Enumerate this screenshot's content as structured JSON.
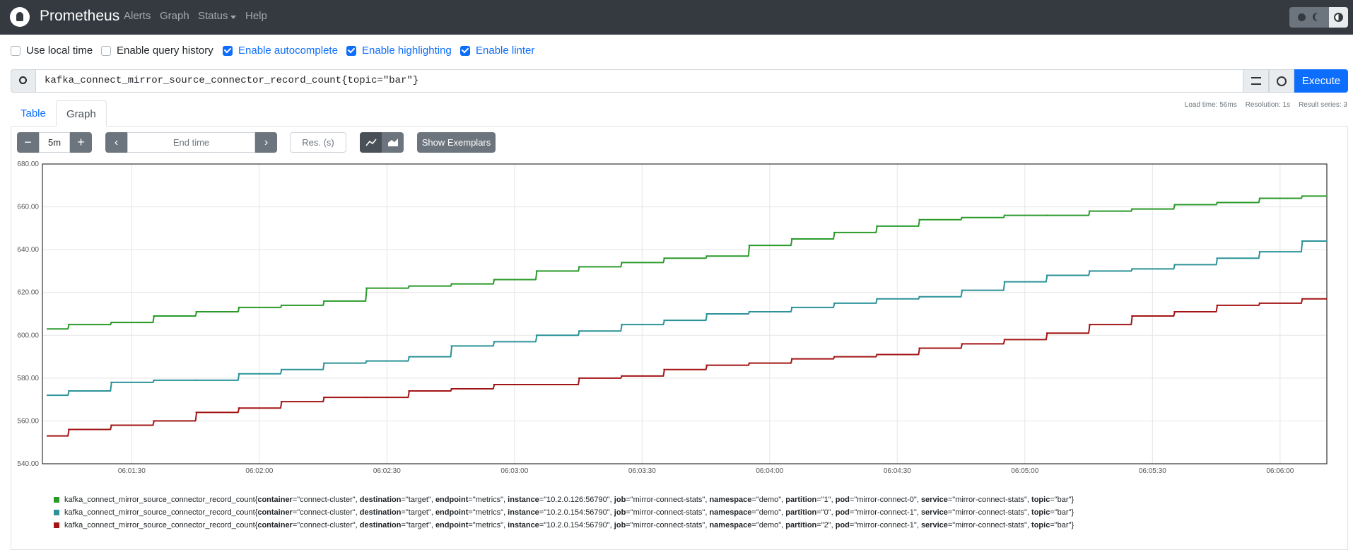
{
  "navbar": {
    "brand": "Prometheus",
    "links": [
      "Alerts",
      "Graph",
      "Status",
      "Help"
    ]
  },
  "options": [
    {
      "label": "Use local time",
      "checked": false
    },
    {
      "label": "Enable query history",
      "checked": false
    },
    {
      "label": "Enable autocomplete",
      "checked": true
    },
    {
      "label": "Enable highlighting",
      "checked": true
    },
    {
      "label": "Enable linter",
      "checked": true
    }
  ],
  "query": "kafka_connect_mirror_source_connector_record_count{topic=\"bar\"}",
  "execute": "Execute",
  "tabs": [
    "Table",
    "Graph"
  ],
  "active_tab": 1,
  "stats": [
    "Load time: 56ms",
    "Resolution: 1s",
    "Result series: 3"
  ],
  "controls": {
    "range": "5m",
    "end_time": "End time",
    "resolution": "Res. (s)",
    "exemplars": "Show Exemplars"
  },
  "chart_data": {
    "type": "line",
    "step": true,
    "grid": true,
    "x": [
      "06:01:10",
      "06:01:15",
      "06:01:25",
      "06:01:35",
      "06:01:45",
      "06:01:55",
      "06:02:05",
      "06:02:15",
      "06:02:25",
      "06:02:35",
      "06:02:45",
      "06:02:55",
      "06:03:05",
      "06:03:15",
      "06:03:25",
      "06:03:35",
      "06:03:45",
      "06:03:55",
      "06:04:05",
      "06:04:15",
      "06:04:25",
      "06:04:35",
      "06:04:45",
      "06:04:55",
      "06:05:05",
      "06:05:15",
      "06:05:25",
      "06:05:35",
      "06:05:45",
      "06:05:55",
      "06:06:05"
    ],
    "xlim": [
      "06:01:09",
      "06:06:11"
    ],
    "xticks": [
      "06:01:30",
      "06:02:00",
      "06:02:30",
      "06:03:00",
      "06:03:30",
      "06:04:00",
      "06:04:30",
      "06:05:00",
      "06:05:30",
      "06:06:00"
    ],
    "ylim": [
      540,
      680
    ],
    "yticks": [
      {
        "value": 540,
        "label": "540.00"
      },
      {
        "value": 560,
        "label": "560.00"
      },
      {
        "value": 580,
        "label": "580.00"
      },
      {
        "value": 600,
        "label": "600.00"
      },
      {
        "value": 620,
        "label": "620.00"
      },
      {
        "value": 640,
        "label": "640.00"
      },
      {
        "value": 660,
        "label": "660.00"
      },
      {
        "value": 680,
        "label": "680.00"
      }
    ],
    "series": [
      {
        "name": "kafka_connect_mirror_source_connector_record_count{container=\"connect-cluster\", destination=\"target\", endpoint=\"metrics\", instance=\"10.2.0.126:56790\", job=\"mirror-connect-stats\", namespace=\"demo\", partition=\"1\", pod=\"mirror-connect-0\", service=\"mirror-connect-stats\", topic=\"bar\"}",
        "color": "#2a9a2a",
        "values": [
          603,
          605,
          606,
          609,
          611,
          613,
          614,
          616,
          622,
          623,
          624,
          626,
          630,
          632,
          634,
          636,
          637,
          642,
          645,
          648,
          651,
          654,
          655,
          656,
          656,
          658,
          659,
          661,
          662,
          664,
          665
        ]
      },
      {
        "name": "kafka_connect_mirror_source_connector_record_count{container=\"connect-cluster\", destination=\"target\", endpoint=\"metrics\", instance=\"10.2.0.154:56790\", job=\"mirror-connect-stats\", namespace=\"demo\", partition=\"0\", pod=\"mirror-connect-1\", service=\"mirror-connect-stats\", topic=\"bar\"}",
        "color": "#2b9399",
        "values": [
          572,
          574,
          578,
          579,
          579,
          582,
          584,
          587,
          588,
          590,
          595,
          597,
          600,
          602,
          605,
          607,
          610,
          611,
          613,
          615,
          617,
          618,
          621,
          625,
          628,
          630,
          631,
          633,
          636,
          639,
          644
        ]
      },
      {
        "name": "kafka_connect_mirror_source_connector_record_count{container=\"connect-cluster\", destination=\"target\", endpoint=\"metrics\", instance=\"10.2.0.154:56790\", job=\"mirror-connect-stats\", namespace=\"demo\", partition=\"2\", pod=\"mirror-connect-1\", service=\"mirror-connect-stats\", topic=\"bar\"}",
        "color": "#a31515",
        "values": [
          553,
          556,
          558,
          560,
          564,
          566,
          569,
          571,
          571,
          574,
          575,
          577,
          577,
          580,
          581,
          584,
          586,
          587,
          589,
          590,
          591,
          594,
          596,
          598,
          601,
          605,
          609,
          611,
          614,
          615,
          617
        ]
      }
    ]
  }
}
